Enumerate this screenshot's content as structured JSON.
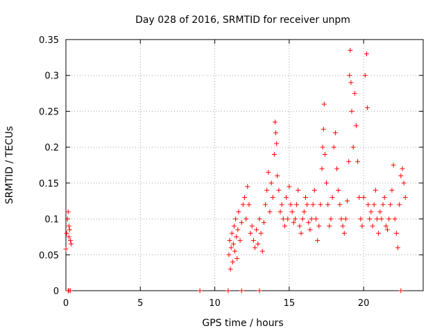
{
  "chart_data": {
    "type": "scatter",
    "title": "Day 028 of 2016, SRMTID for receiver unpm",
    "xlabel": "GPS time / hours",
    "ylabel": "SRMTID / TECUs",
    "xlim": [
      0,
      24
    ],
    "ylim": [
      0,
      0.35
    ],
    "xticks": [
      0,
      5,
      10,
      15,
      20
    ],
    "xtick_labels": [
      "0",
      "5",
      "10",
      "15",
      "20"
    ],
    "yticks": [
      0,
      0.05,
      0.1,
      0.15,
      0.2,
      0.25,
      0.3,
      0.35
    ],
    "ytick_labels": [
      "0",
      "0.05",
      "0.1",
      "0.15",
      "0.2",
      "0.25",
      "0.3",
      "0.35"
    ],
    "grid": true,
    "marker": "+",
    "color": "#ff0000",
    "series": [
      {
        "name": "SRMTID",
        "x": [
          0.0,
          0.05,
          0.1,
          0.15,
          0.2,
          0.2,
          0.25,
          0.3,
          0.35,
          0.15,
          0.2,
          0.3,
          9.0,
          10.9,
          11.8,
          13.0,
          22.5,
          10.95,
          11.0,
          11.05,
          11.1,
          11.15,
          11.2,
          11.25,
          11.3,
          11.35,
          11.4,
          11.45,
          11.5,
          11.55,
          11.6,
          11.7,
          11.8,
          11.9,
          12.0,
          12.1,
          12.2,
          12.3,
          12.4,
          12.5,
          12.6,
          12.7,
          12.8,
          12.9,
          13.0,
          13.1,
          13.2,
          13.3,
          13.4,
          13.5,
          13.6,
          13.7,
          13.8,
          13.9,
          14.0,
          14.05,
          14.1,
          14.15,
          14.2,
          14.3,
          14.4,
          14.5,
          14.6,
          14.7,
          14.8,
          14.9,
          15.0,
          15.1,
          15.2,
          15.3,
          15.4,
          15.5,
          15.6,
          15.7,
          15.8,
          15.9,
          16.0,
          16.1,
          16.2,
          16.3,
          16.4,
          16.5,
          16.6,
          16.7,
          16.8,
          16.9,
          17.0,
          17.1,
          17.2,
          17.25,
          17.3,
          17.35,
          17.4,
          17.5,
          17.6,
          17.7,
          17.8,
          17.9,
          18.0,
          18.1,
          18.2,
          18.3,
          18.4,
          18.5,
          18.6,
          18.7,
          18.8,
          18.9,
          19.0,
          19.05,
          19.1,
          19.15,
          19.2,
          19.3,
          19.4,
          19.5,
          19.6,
          19.7,
          19.8,
          19.9,
          20.0,
          20.1,
          20.2,
          20.25,
          20.3,
          20.4,
          20.5,
          20.6,
          20.7,
          20.8,
          20.9,
          21.0,
          21.1,
          21.2,
          21.3,
          21.4,
          21.5,
          21.6,
          21.7,
          21.8,
          21.9,
          22.0,
          22.1,
          22.2,
          22.3,
          22.4,
          22.5,
          22.6,
          22.7,
          22.8
        ],
        "y": [
          0.058,
          0.08,
          0.1,
          0.11,
          0.09,
          0.075,
          0.085,
          0.07,
          0.065,
          0.0,
          0.0,
          0.0,
          0.0,
          0.0,
          0.0,
          0.0,
          0.0,
          0.05,
          0.07,
          0.03,
          0.06,
          0.08,
          0.04,
          0.065,
          0.09,
          0.055,
          0.1,
          0.075,
          0.045,
          0.085,
          0.11,
          0.07,
          0.095,
          0.12,
          0.13,
          0.1,
          0.145,
          0.12,
          0.08,
          0.09,
          0.07,
          0.06,
          0.085,
          0.065,
          0.1,
          0.08,
          0.055,
          0.095,
          0.12,
          0.14,
          0.165,
          0.11,
          0.15,
          0.13,
          0.19,
          0.235,
          0.22,
          0.205,
          0.16,
          0.14,
          0.11,
          0.12,
          0.1,
          0.09,
          0.13,
          0.1,
          0.145,
          0.12,
          0.11,
          0.095,
          0.1,
          0.12,
          0.14,
          0.09,
          0.08,
          0.1,
          0.11,
          0.13,
          0.12,
          0.095,
          0.085,
          0.1,
          0.12,
          0.14,
          0.1,
          0.07,
          0.09,
          0.12,
          0.17,
          0.2,
          0.225,
          0.26,
          0.19,
          0.15,
          0.12,
          0.09,
          0.1,
          0.13,
          0.2,
          0.22,
          0.17,
          0.14,
          0.12,
          0.1,
          0.09,
          0.08,
          0.1,
          0.125,
          0.18,
          0.3,
          0.335,
          0.29,
          0.25,
          0.2,
          0.275,
          0.23,
          0.18,
          0.13,
          0.1,
          0.09,
          0.13,
          0.3,
          0.33,
          0.255,
          0.12,
          0.1,
          0.11,
          0.09,
          0.12,
          0.14,
          0.1,
          0.08,
          0.11,
          0.1,
          0.12,
          0.13,
          0.09,
          0.085,
          0.1,
          0.12,
          0.14,
          0.175,
          0.1,
          0.08,
          0.06,
          0.12,
          0.16,
          0.17,
          0.15,
          0.13
        ]
      }
    ]
  }
}
